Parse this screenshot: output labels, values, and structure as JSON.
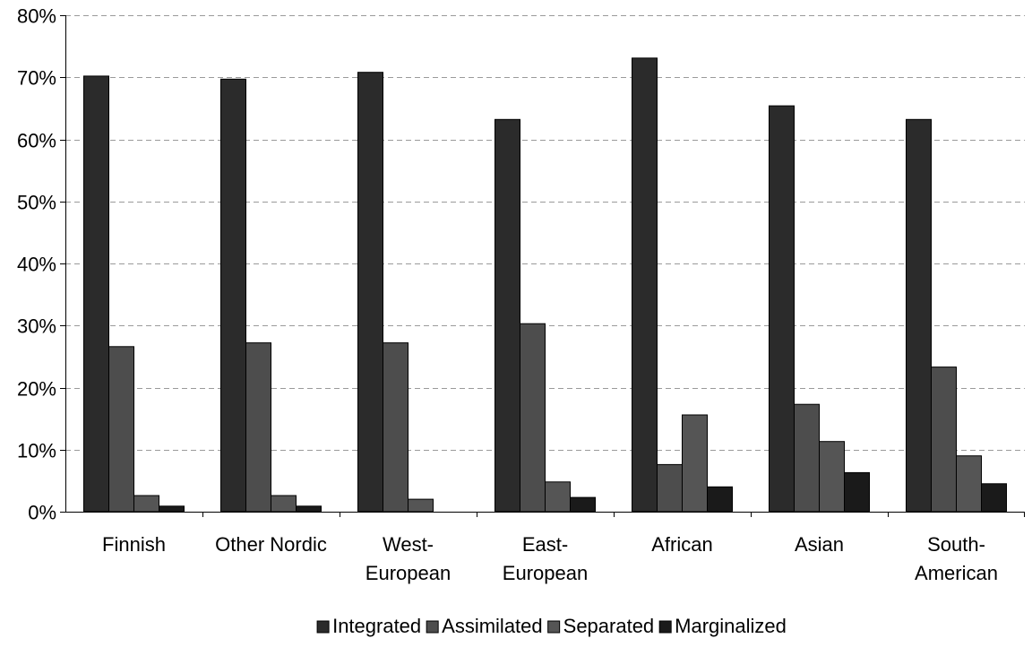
{
  "chart_data": {
    "type": "bar",
    "title": "",
    "xlabel": "",
    "ylabel": "",
    "ylim": [
      0,
      80
    ],
    "yticks": [
      "0%",
      "10%",
      "20%",
      "30%",
      "40%",
      "50%",
      "60%",
      "70%",
      "80%"
    ],
    "categories": [
      [
        "Finnish"
      ],
      [
        "Other Nordic"
      ],
      [
        "West-",
        "European"
      ],
      [
        "East-",
        "European"
      ],
      [
        "African"
      ],
      [
        "Asian"
      ],
      [
        "South-",
        "American"
      ]
    ],
    "series": [
      {
        "name": "Integrated",
        "color": "#2b2b2b",
        "values": [
          70.2,
          69.7,
          70.8,
          63.2,
          73.1,
          65.4,
          63.2
        ]
      },
      {
        "name": "Assimilated",
        "color": "#4d4d4d",
        "values": [
          26.6,
          27.2,
          27.2,
          30.3,
          7.6,
          17.3,
          23.3
        ]
      },
      {
        "name": "Separated",
        "color": "#555555",
        "values": [
          2.6,
          2.6,
          2.0,
          4.8,
          15.6,
          11.3,
          9.0
        ]
      },
      {
        "name": "Marginalized",
        "color": "#1a1a1a",
        "values": [
          0.9,
          0.9,
          0,
          2.3,
          4.0,
          6.3,
          4.5
        ]
      }
    ],
    "grid": true,
    "legend_position": "bottom"
  }
}
